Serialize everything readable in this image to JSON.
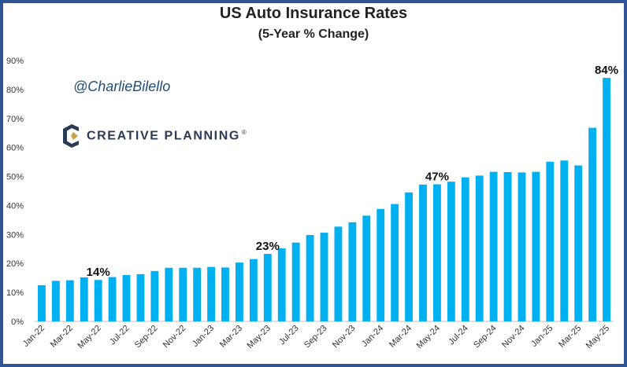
{
  "brand": {
    "handle": "@CharlieBilello",
    "company": "CREATIVE PLANNING",
    "trademark": "®",
    "accent_color": "#2b3a55",
    "logo_gold": "#c8a24a",
    "logo_icon": "creative-planning-logo-icon"
  },
  "chart_data": {
    "type": "bar",
    "title": "US Auto Insurance Rates",
    "subtitle": "(5-Year % Change)",
    "xlabel": "",
    "ylabel": "",
    "ylim": [
      0,
      90
    ],
    "yticks": [
      "0%",
      "10%",
      "20%",
      "30%",
      "40%",
      "50%",
      "60%",
      "70%",
      "80%",
      "90%"
    ],
    "grid": false,
    "bar_color": "#00b0f0",
    "categories": [
      "Jan-22",
      "Feb-22",
      "Mar-22",
      "Apr-22",
      "May-22",
      "Jun-22",
      "Jul-22",
      "Aug-22",
      "Sep-22",
      "Oct-22",
      "Nov-22",
      "Dec-22",
      "Jan-23",
      "Feb-23",
      "Mar-23",
      "Apr-23",
      "May-23",
      "Jun-23",
      "Jul-23",
      "Aug-23",
      "Sep-23",
      "Oct-23",
      "Nov-23",
      "Dec-23",
      "Jan-24",
      "Feb-24",
      "Mar-24",
      "Apr-24",
      "May-24",
      "Jun-24",
      "Jul-24",
      "Aug-24",
      "Sep-24",
      "Oct-24",
      "Nov-24",
      "Dec-24",
      "Jan-25",
      "Feb-25",
      "Mar-25",
      "Apr-25",
      "May-25"
    ],
    "xtick_labels": [
      "Jan-22",
      "Mar-22",
      "May-22",
      "Jul-22",
      "Sep-22",
      "Nov-22",
      "Jan-23",
      "Mar-23",
      "May-23",
      "Jul-23",
      "Sep-23",
      "Nov-23",
      "Jan-24",
      "Mar-24",
      "May-24",
      "Jul-24",
      "Sep-24",
      "Nov-24",
      "Jan-25",
      "Mar-25",
      "May-25"
    ],
    "values": [
      12.5,
      14.0,
      14.2,
      15.2,
      14.3,
      15.3,
      16.0,
      16.3,
      17.4,
      18.5,
      18.5,
      18.5,
      18.8,
      18.6,
      20.3,
      21.5,
      23.3,
      25.2,
      27.2,
      29.8,
      30.6,
      32.7,
      34.2,
      36.5,
      38.8,
      40.5,
      44.5,
      47.2,
      47.3,
      48.2,
      49.7,
      50.3,
      51.6,
      51.5,
      51.4,
      51.6,
      55.1,
      55.5,
      53.8,
      66.8,
      84.0
    ],
    "annotations": [
      {
        "index": 4,
        "label": "14%"
      },
      {
        "index": 16,
        "label": "23%"
      },
      {
        "index": 28,
        "label": "47%"
      },
      {
        "index": 40,
        "label": "84%"
      }
    ]
  }
}
